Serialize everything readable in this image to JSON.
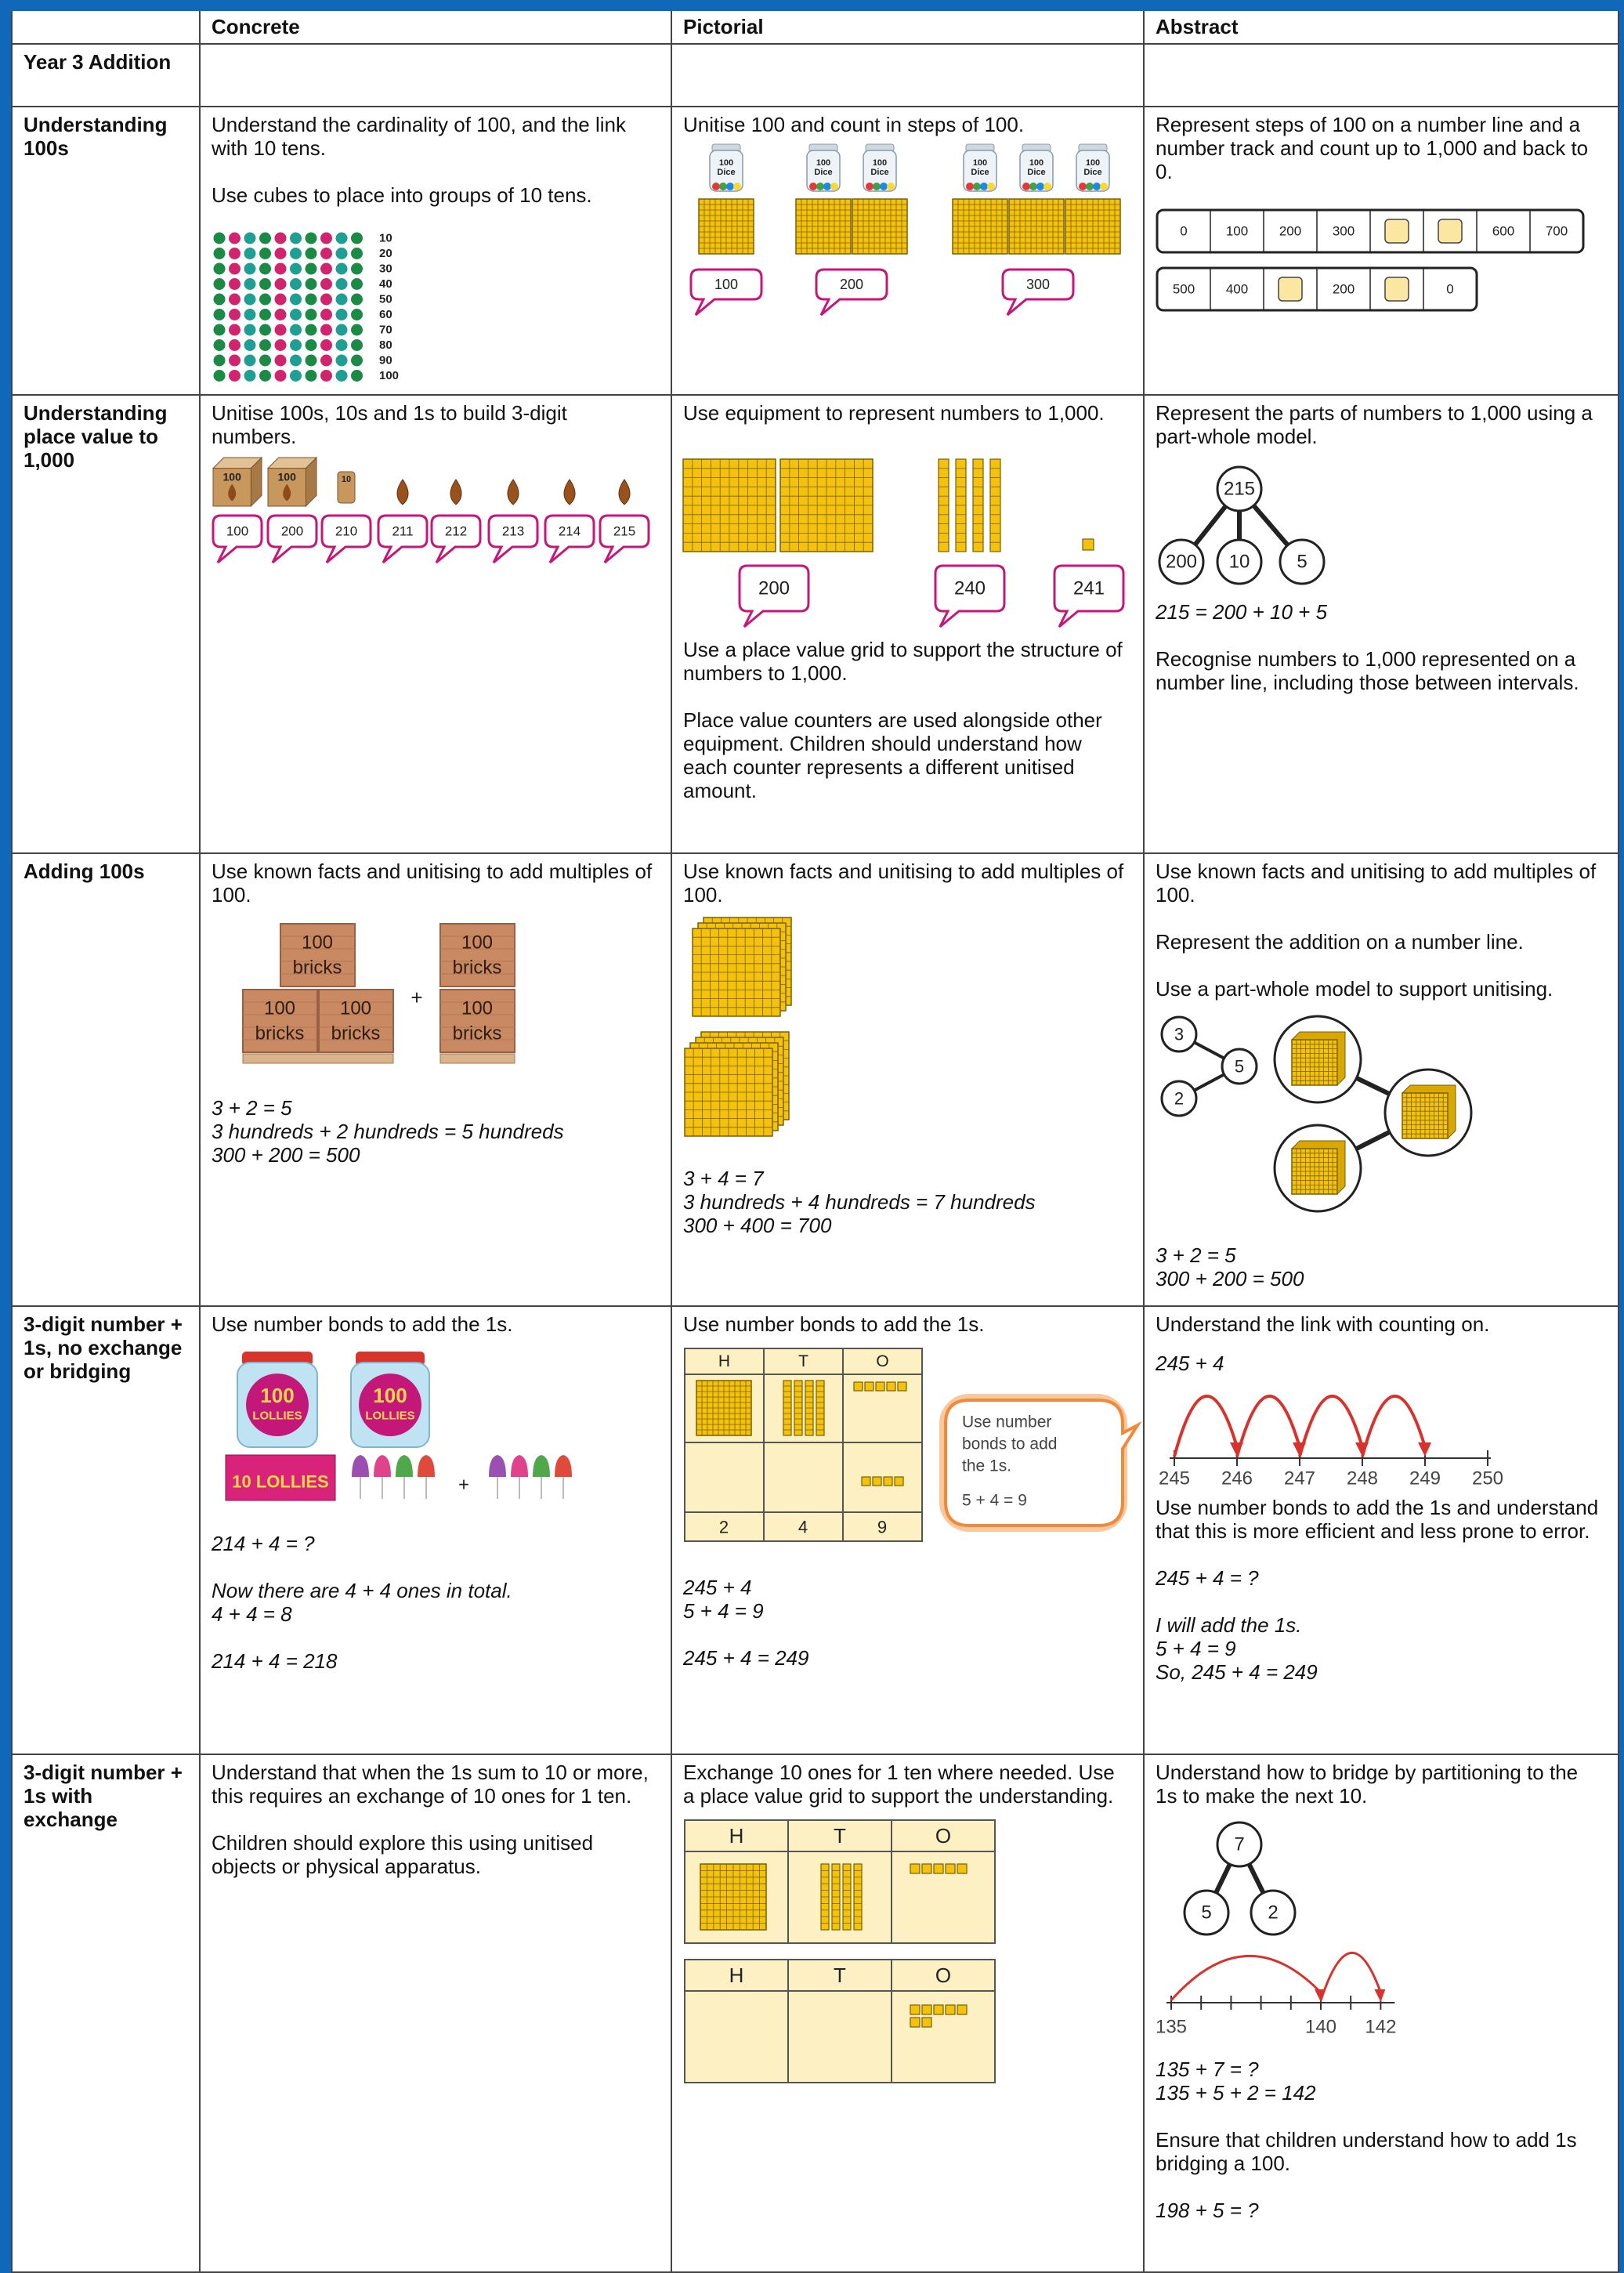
{
  "header": {
    "columns": [
      "Concrete",
      "Pictorial",
      "Abstract"
    ]
  },
  "rows": [
    {
      "label": "Year 3 Addition"
    },
    {
      "label": "Understanding 100s",
      "concrete": {
        "text": [
          "Understand the cardinality of 100, and the link with 10 tens.",
          "Use cubes to place into groups of 10 tens."
        ],
        "counts": [
          10,
          20,
          30,
          40,
          50,
          60,
          70,
          80,
          90,
          100
        ]
      },
      "pictorial": {
        "text": [
          "Unitise 100 and count in steps of 100."
        ],
        "dice_label": [
          "100",
          "Dice"
        ],
        "bubbles": [
          100,
          200,
          300
        ]
      },
      "abstract": {
        "text": [
          "Represent steps of 100 on a number line and a number track and count up to 1,000 and back to 0."
        ],
        "track_1": [
          0,
          100,
          200,
          300,
          null,
          null,
          600,
          700
        ],
        "track_2": [
          500,
          400,
          null,
          200,
          null,
          0
        ]
      }
    },
    {
      "label": "Understanding place value to 1,000",
      "concrete": {
        "text": [
          "Unitise 100s, 10s and 1s to build 3-digit numbers."
        ],
        "block_labels": [
          100,
          100,
          10
        ],
        "bubbles": [
          100,
          200,
          210,
          211,
          212,
          213,
          214,
          215
        ]
      },
      "pictorial": {
        "text": [
          "Use equipment to represent numbers to 1,000.",
          "Use a place value grid to support the structure of numbers to 1,000.",
          "Place value counters are used alongside other equipment. Children should understand how each counter represents a different unitised amount."
        ],
        "bubbles": [
          200,
          240,
          241
        ]
      },
      "abstract": {
        "text": [
          "Represent the parts of numbers to 1,000 using a part-whole model.",
          "215 = 200 + 10 + 5",
          "Recognise numbers to 1,000 represented on a number line, including those between intervals."
        ],
        "whole": 215,
        "parts": [
          200,
          10,
          5
        ]
      }
    },
    {
      "label": "Adding 100s",
      "concrete": {
        "text": [
          "Use known facts and unitising to add multiples of 100."
        ],
        "brick_label": [
          "100",
          "bricks"
        ],
        "plus": "+",
        "equations": [
          "3 + 2 = 5",
          "3 hundreds + 2 hundreds = 5 hundreds",
          "300 + 200 = 500"
        ]
      },
      "pictorial": {
        "text": [
          "Use known facts and unitising to add multiples of 100."
        ],
        "equations": [
          "3 + 4 = 7",
          "3 hundreds + 4 hundreds = 7 hundreds",
          "300 + 400 = 700"
        ]
      },
      "abstract": {
        "text": [
          "Use known facts and unitising to add multiples of 100.",
          "Represent the addition on a number line.",
          "Use a part-whole model to support unitising."
        ],
        "parts": [
          3,
          2
        ],
        "whole": 5,
        "equations": [
          "3 + 2 = 5",
          "300 + 200 = 500"
        ]
      }
    },
    {
      "label": "3-digit number + 1s, no exchange or bridging",
      "concrete": {
        "text": [
          "Use number bonds to add the 1s."
        ],
        "jar_label": [
          "100",
          "LOLLIES"
        ],
        "box_label": "10 LOLLIES",
        "plus": "+",
        "equations": [
          "214 + 4 = ?",
          "Now there are 4 + 4 ones in total.",
          "4 + 4 = 8",
          "214 + 4 = 218"
        ]
      },
      "pictorial": {
        "text": [
          "Use number bonds to add the 1s."
        ],
        "grid_headers": [
          "H",
          "T",
          "O"
        ],
        "grid_digits": [
          2,
          4,
          9
        ],
        "callout": [
          "Use number",
          "bonds to add",
          "the 1s.",
          "5 + 4 = 9"
        ],
        "equations": [
          "245 + 4",
          "5 + 4 = 9",
          "245 + 4 = 249"
        ]
      },
      "abstract": {
        "text": [
          "Understand the link with counting on.",
          "245 + 4",
          "Use number bonds to add the 1s and understand that this is more efficient and less prone to error.",
          "245 + 4 = ?",
          "I will add the 1s.",
          "5 + 4 = 9",
          "So, 245 + 4 = 249"
        ],
        "line_labels": [
          245,
          246,
          247,
          248,
          249,
          250
        ]
      }
    },
    {
      "label": "3-digit number + 1s with exchange",
      "concrete": {
        "text": [
          "Understand that when the 1s sum to 10 or more, this requires an exchange of 10 ones for 1 ten.",
          "Children should explore this using unitised objects or physical apparatus."
        ]
      },
      "pictorial": {
        "text": [
          "Exchange 10 ones for 1 ten where needed. Use a place value grid to support the understanding."
        ],
        "grid_headers": [
          "H",
          "T",
          "O"
        ]
      },
      "abstract": {
        "text": [
          "Understand how to bridge by partitioning to the 1s to make the next 10.",
          "135 + 7 = ?",
          "135 + 5 + 2 = 142",
          "Ensure that children understand how to add 1s bridging a 100.",
          "198 + 5 = ?"
        ],
        "whole": 7,
        "parts": [
          5,
          2
        ],
        "line_labels": [
          135,
          140,
          142
        ]
      }
    }
  ]
}
